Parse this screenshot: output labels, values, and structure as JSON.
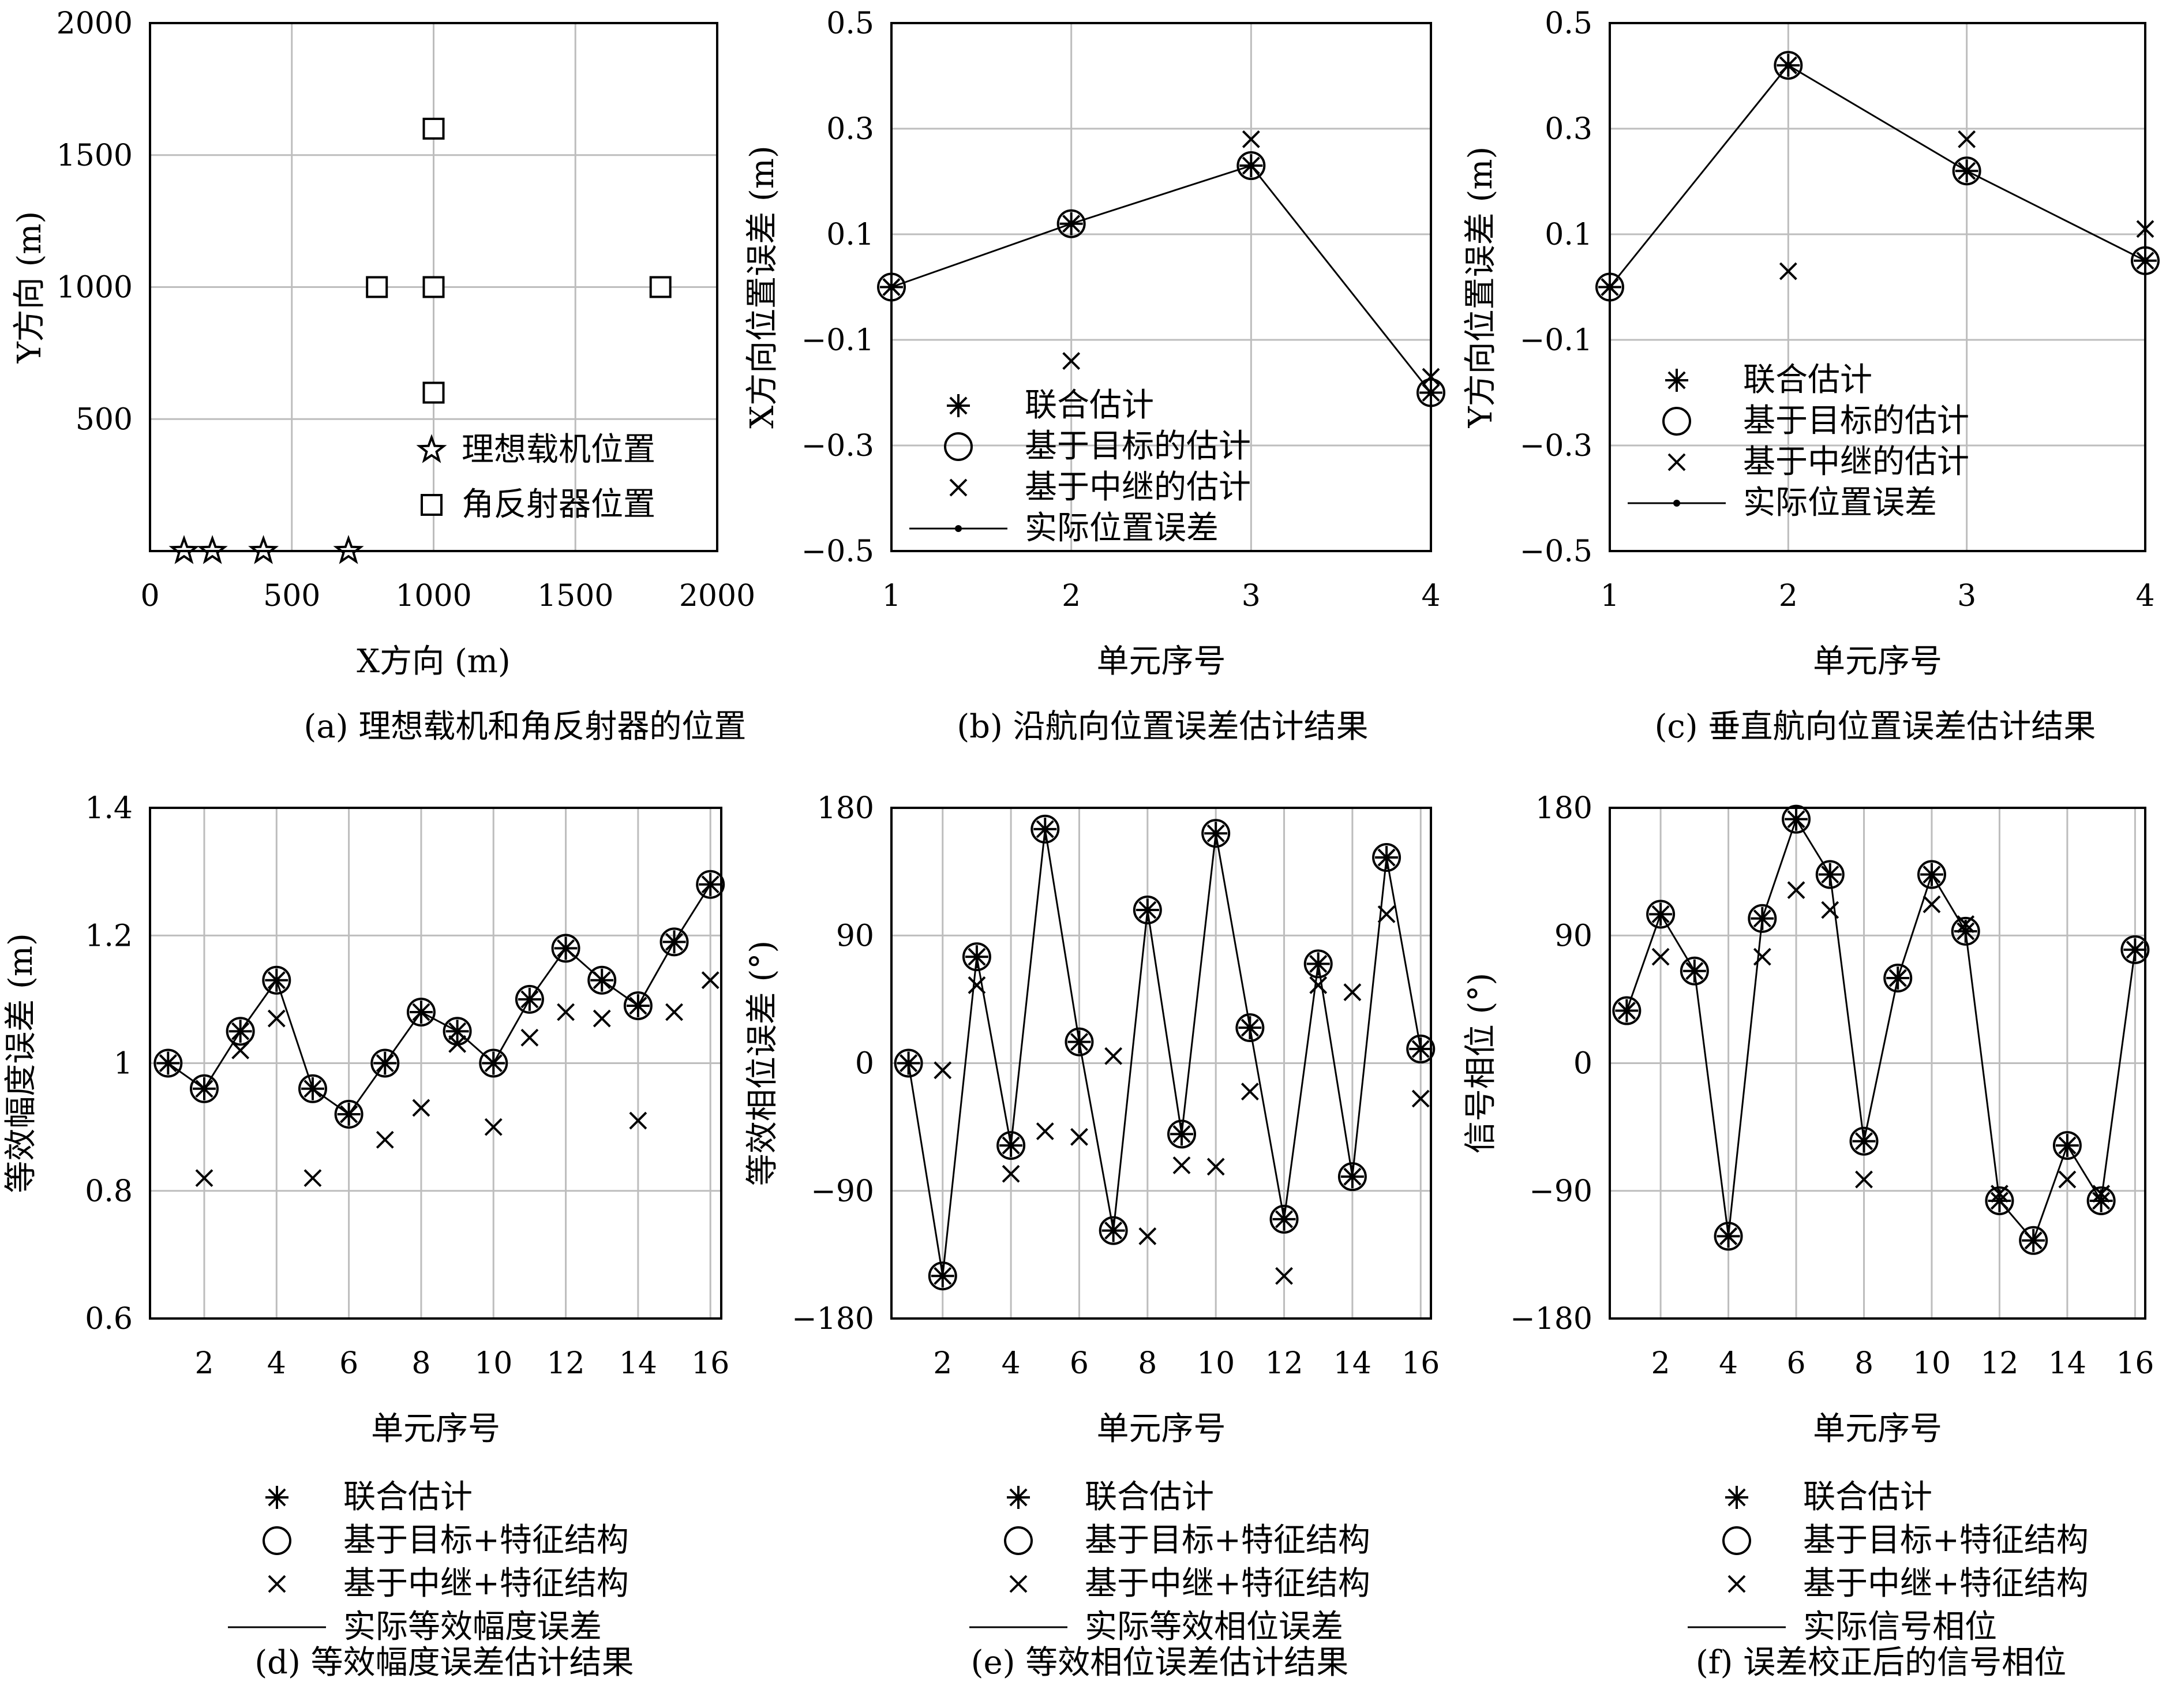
{
  "chart_data": [
    {
      "id": "a",
      "type": "scatter",
      "caption": "(a) 理想载机和角反射器的位置",
      "xlabel": "X方向 (m)",
      "ylabel": "Y方向 (m)",
      "xlim": [
        0,
        2000
      ],
      "ylim": [
        0,
        2000
      ],
      "xticks": [
        0,
        500,
        1000,
        1500,
        2000
      ],
      "yticks": [
        500,
        1000,
        1500,
        2000
      ],
      "grid": true,
      "legend_position": "bottom-right",
      "series": [
        {
          "name": "理想载机位置",
          "marker": "star",
          "x": [
            120,
            220,
            400,
            700
          ],
          "y": [
            0,
            0,
            0,
            0
          ]
        },
        {
          "name": "角反射器位置",
          "marker": "square",
          "x": [
            1000,
            1000,
            800,
            1000,
            1800,
            1000
          ],
          "y": [
            1600,
            1000,
            1000,
            1000,
            1000,
            600
          ]
        }
      ]
    },
    {
      "id": "b",
      "type": "line",
      "caption": "(b) 沿航向位置误差估计结果",
      "xlabel": "单元序号",
      "ylabel": "X方向位置误差 (m)",
      "xlim": [
        1,
        4
      ],
      "ylim": [
        -0.5,
        0.5
      ],
      "xticks": [
        1,
        2,
        3,
        4
      ],
      "yticks": [
        -0.5,
        -0.3,
        -0.1,
        0.1,
        0.3,
        0.5
      ],
      "grid": true,
      "legend_position": "bottom-left",
      "x": [
        1,
        2,
        3,
        4
      ],
      "series": [
        {
          "name": "联合估计",
          "marker": "asterisk",
          "values": [
            0.0,
            0.12,
            0.23,
            -0.2
          ]
        },
        {
          "name": "基于目标的估计",
          "marker": "circle",
          "values": [
            0.0,
            0.12,
            0.23,
            -0.2
          ]
        },
        {
          "name": "基于中继的估计",
          "marker": "x",
          "values": [
            0.0,
            -0.14,
            0.28,
            -0.17
          ]
        },
        {
          "name": "实际位置误差",
          "marker": "line-dot",
          "values": [
            0.0,
            0.12,
            0.23,
            -0.2
          ]
        }
      ]
    },
    {
      "id": "c",
      "type": "line",
      "caption": "(c) 垂直航向位置误差估计结果",
      "xlabel": "单元序号",
      "ylabel": "Y方向位置误差 (m)",
      "xlim": [
        1,
        4
      ],
      "ylim": [
        -0.5,
        0.5
      ],
      "xticks": [
        1,
        2,
        3,
        4
      ],
      "yticks": [
        -0.5,
        -0.3,
        -0.1,
        0.1,
        0.3,
        0.5
      ],
      "grid": true,
      "legend_position": "bottom-left",
      "x": [
        1,
        2,
        3,
        4
      ],
      "series": [
        {
          "name": "联合估计",
          "marker": "asterisk",
          "values": [
            0.0,
            0.42,
            0.22,
            0.05
          ]
        },
        {
          "name": "基于目标的估计",
          "marker": "circle",
          "values": [
            0.0,
            0.42,
            0.22,
            0.05
          ]
        },
        {
          "name": "基于中继的估计",
          "marker": "x",
          "values": [
            0.0,
            0.03,
            0.28,
            0.11
          ]
        },
        {
          "name": "实际位置误差",
          "marker": "line-dot",
          "values": [
            0.0,
            0.42,
            0.22,
            0.05
          ]
        }
      ]
    },
    {
      "id": "d",
      "type": "line",
      "caption": "(d) 等效幅度误差估计结果",
      "xlabel": "单元序号",
      "ylabel": "等效幅度误差 (m)",
      "xlim": [
        0.5,
        16.3
      ],
      "ylim": [
        0.6,
        1.4
      ],
      "xticks": [
        2,
        4,
        6,
        8,
        10,
        12,
        14,
        16
      ],
      "yticks": [
        0.6,
        0.8,
        1.0,
        1.2,
        1.4
      ],
      "grid": true,
      "legend_position": "below",
      "x": [
        1,
        2,
        3,
        4,
        5,
        6,
        7,
        8,
        9,
        10,
        11,
        12,
        13,
        14,
        15,
        16
      ],
      "series": [
        {
          "name": "联合估计",
          "marker": "asterisk",
          "values": [
            1.0,
            0.96,
            1.05,
            1.13,
            0.96,
            0.92,
            1.0,
            1.08,
            1.05,
            1.0,
            1.1,
            1.18,
            1.13,
            1.09,
            1.19,
            1.28
          ]
        },
        {
          "name": "基于目标+特征结构",
          "marker": "circle",
          "values": [
            1.0,
            0.96,
            1.05,
            1.13,
            0.96,
            0.92,
            1.0,
            1.08,
            1.05,
            1.0,
            1.1,
            1.18,
            1.13,
            1.09,
            1.19,
            1.28
          ]
        },
        {
          "name": "基于中继+特征结构",
          "marker": "x",
          "values": [
            1.0,
            0.82,
            1.02,
            1.07,
            0.82,
            0.92,
            0.88,
            0.93,
            1.03,
            0.9,
            1.04,
            1.08,
            1.07,
            0.91,
            1.08,
            1.13
          ]
        },
        {
          "name": "实际等效幅度误差",
          "marker": "line",
          "values": [
            1.0,
            0.96,
            1.05,
            1.13,
            0.96,
            0.92,
            1.0,
            1.08,
            1.05,
            1.0,
            1.1,
            1.18,
            1.13,
            1.09,
            1.19,
            1.28
          ]
        }
      ]
    },
    {
      "id": "e",
      "type": "line",
      "caption": "(e) 等效相位误差估计结果",
      "xlabel": "单元序号",
      "ylabel": "等效相位误差 (°)",
      "xlim": [
        0.5,
        16.3
      ],
      "ylim": [
        -180,
        180
      ],
      "xticks": [
        2,
        4,
        6,
        8,
        10,
        12,
        14,
        16
      ],
      "yticks": [
        -180,
        -90,
        0,
        90,
        180
      ],
      "grid": true,
      "legend_position": "below",
      "x": [
        1,
        2,
        3,
        4,
        5,
        6,
        7,
        8,
        9,
        10,
        11,
        12,
        13,
        14,
        15,
        16
      ],
      "series": [
        {
          "name": "联合估计",
          "marker": "asterisk",
          "values": [
            0,
            -150,
            75,
            -58,
            165,
            15,
            -118,
            108,
            -50,
            162,
            25,
            -110,
            70,
            -80,
            145,
            10
          ]
        },
        {
          "name": "基于目标+特征结构",
          "marker": "circle",
          "values": [
            0,
            -150,
            75,
            -58,
            165,
            15,
            -118,
            108,
            -50,
            162,
            25,
            -110,
            70,
            -80,
            145,
            10
          ]
        },
        {
          "name": "基于中继+特征结构",
          "marker": "x",
          "values": [
            0,
            -5,
            55,
            -78,
            -48,
            -52,
            5,
            -122,
            -72,
            -73,
            -20,
            -150,
            55,
            50,
            105,
            -25
          ]
        },
        {
          "name": "实际等效相位误差",
          "marker": "line",
          "values": [
            0,
            -150,
            75,
            -58,
            165,
            15,
            -118,
            108,
            -50,
            162,
            25,
            -110,
            70,
            -80,
            145,
            10
          ]
        }
      ]
    },
    {
      "id": "f",
      "type": "line",
      "caption": "(f) 误差校正后的信号相位",
      "xlabel": "单元序号",
      "ylabel": "信号相位 (°)",
      "xlim": [
        0.5,
        16.3
      ],
      "ylim": [
        -180,
        180
      ],
      "xticks": [
        2,
        4,
        6,
        8,
        10,
        12,
        14,
        16
      ],
      "yticks": [
        -180,
        -90,
        0,
        90,
        180
      ],
      "grid": true,
      "legend_position": "below",
      "x": [
        1,
        2,
        3,
        4,
        5,
        6,
        7,
        8,
        9,
        10,
        11,
        12,
        13,
        14,
        15,
        16
      ],
      "series": [
        {
          "name": "联合估计",
          "marker": "asterisk",
          "values": [
            37,
            105,
            65,
            -122,
            102,
            172,
            133,
            -55,
            60,
            133,
            93,
            -97,
            -125,
            -58,
            -97,
            80
          ]
        },
        {
          "name": "基于目标+特征结构",
          "marker": "circle",
          "values": [
            37,
            105,
            65,
            -122,
            102,
            172,
            133,
            -55,
            60,
            133,
            93,
            -97,
            -125,
            -58,
            -97,
            80
          ]
        },
        {
          "name": "基于中继+特征结构",
          "marker": "x",
          "values": [
            37,
            75,
            65,
            -122,
            75,
            122,
            108,
            -82,
            60,
            112,
            98,
            -92,
            -125,
            -82,
            -92,
            80
          ]
        },
        {
          "name": "实际信号相位",
          "marker": "line",
          "values": [
            37,
            105,
            65,
            -122,
            102,
            172,
            133,
            -55,
            60,
            133,
            93,
            -97,
            -125,
            -58,
            -97,
            80
          ]
        }
      ]
    }
  ]
}
